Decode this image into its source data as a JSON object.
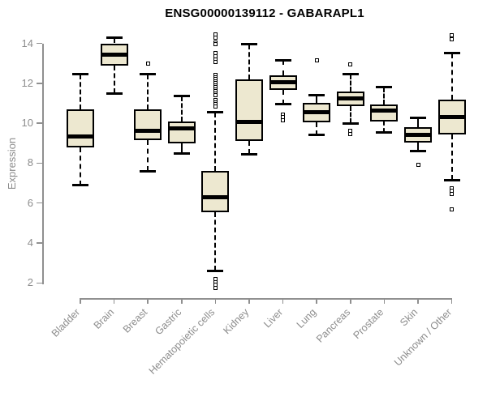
{
  "chart_data": {
    "type": "boxplot",
    "title": "ENSG00000139112 - GABARAPL1",
    "ylabel": "Expression",
    "xlabel": "",
    "ylim": [
      2,
      14
    ],
    "yticks": [
      2,
      4,
      6,
      8,
      10,
      12,
      14
    ],
    "grid": false,
    "legend": "none",
    "colors": {
      "box_fill": "#EDE8D0",
      "box_border": "#000000",
      "axis": "#909090",
      "tick_text": "#8c8c8c",
      "title_text": "#000000"
    },
    "categories": [
      "Bladder",
      "Brain",
      "Breast",
      "Gastric",
      "Hematopoietic cells",
      "Kidney",
      "Liver",
      "Lung",
      "Pancreas",
      "Prostate",
      "Skin",
      "Unknown / Other"
    ],
    "boxes": [
      {
        "category": "Bladder",
        "low": 6.9,
        "q1": 8.8,
        "median": 9.35,
        "q3": 10.7,
        "high": 12.45,
        "outliers": []
      },
      {
        "category": "Brain",
        "low": 11.5,
        "q1": 12.9,
        "median": 13.45,
        "q3": 14.0,
        "high": 14.3,
        "outliers": []
      },
      {
        "category": "Breast",
        "low": 7.6,
        "q1": 9.15,
        "median": 9.6,
        "q3": 10.7,
        "high": 12.45,
        "outliers": [
          13.0
        ]
      },
      {
        "category": "Gastric",
        "low": 8.5,
        "q1": 9.0,
        "median": 9.75,
        "q3": 10.1,
        "high": 11.35,
        "outliers": []
      },
      {
        "category": "Hematopoietic cells",
        "low": 2.6,
        "q1": 5.55,
        "median": 6.3,
        "q3": 7.6,
        "high": 10.55,
        "outliers": [
          14.45,
          14.3,
          14.05,
          13.95,
          13.5,
          13.35,
          13.2,
          13.05,
          12.4,
          12.3,
          12.2,
          12.1,
          12.0,
          11.9,
          11.8,
          11.7,
          11.6,
          11.5,
          11.4,
          11.15,
          11.05,
          10.95,
          10.85,
          2.2,
          2.05,
          1.9,
          1.75
        ]
      },
      {
        "category": "Kidney",
        "low": 8.45,
        "q1": 9.1,
        "median": 10.05,
        "q3": 12.2,
        "high": 13.95,
        "outliers": []
      },
      {
        "category": "Liver",
        "low": 10.95,
        "q1": 11.65,
        "median": 12.05,
        "q3": 12.4,
        "high": 13.15,
        "outliers": [
          10.45,
          10.3,
          10.15
        ]
      },
      {
        "category": "Lung",
        "low": 9.4,
        "q1": 10.05,
        "median": 10.55,
        "q3": 11.0,
        "high": 11.4,
        "outliers": [
          13.15
        ]
      },
      {
        "category": "Pancreas",
        "low": 10.0,
        "q1": 10.85,
        "median": 11.25,
        "q3": 11.6,
        "high": 12.45,
        "outliers": [
          12.95,
          9.6,
          9.45
        ]
      },
      {
        "category": "Prostate",
        "low": 9.55,
        "q1": 10.1,
        "median": 10.65,
        "q3": 10.95,
        "high": 11.8,
        "outliers": []
      },
      {
        "category": "Skin",
        "low": 8.6,
        "q1": 9.05,
        "median": 9.4,
        "q3": 9.8,
        "high": 10.25,
        "outliers": [
          7.9
        ]
      },
      {
        "category": "Unknown / Other",
        "low": 7.15,
        "q1": 9.45,
        "median": 10.3,
        "q3": 11.2,
        "high": 13.5,
        "outliers": [
          14.4,
          14.2,
          6.75,
          6.6,
          6.45,
          5.7
        ]
      }
    ]
  }
}
